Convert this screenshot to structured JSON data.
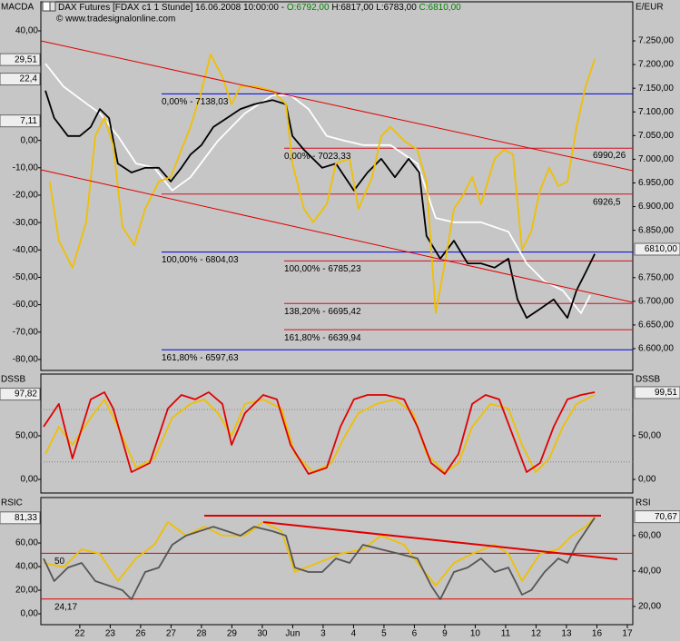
{
  "header": {
    "title": "DAX Futures [FDAX c1  1 Stunde] 16.06.2008 10:00:00 -",
    "open": "O:6792,00",
    "high": "H:6817,00",
    "low": "L:6783,00",
    "close": "C:6810,00",
    "copyright": "© www.tradesignalonline.com"
  },
  "chart_data": [
    {
      "type": "line",
      "left_title": "MACDA",
      "right_title": "E/EUR",
      "xlim": [
        -1.28,
        18.18
      ],
      "ylim": [
        -84.0,
        50.6
      ],
      "y2lim": [
        6554.0,
        7332.5
      ],
      "yticks": [
        {
          "value": 40,
          "label": "40,00"
        },
        {
          "value": 0,
          "label": "0,00"
        },
        {
          "value": -10,
          "label": "-10,00"
        },
        {
          "value": -20,
          "label": "-20,00"
        },
        {
          "value": -30,
          "label": "-30,00"
        },
        {
          "value": -40,
          "label": "-40,00"
        },
        {
          "value": -50,
          "label": "-50,00"
        },
        {
          "value": -60,
          "label": "-60,00"
        },
        {
          "value": -70,
          "label": "-70,00"
        },
        {
          "value": -80,
          "label": "-80,00"
        }
      ],
      "y2ticks": [
        {
          "value": 7250,
          "label": "7.250,00"
        },
        {
          "value": 7200,
          "label": "7.200,00"
        },
        {
          "value": 7150,
          "label": "7.150,00"
        },
        {
          "value": 7100,
          "label": "7.100,00"
        },
        {
          "value": 7050,
          "label": "7.050,00"
        },
        {
          "value": 7000,
          "label": "7.000,00"
        },
        {
          "value": 6950,
          "label": "6.950,00"
        },
        {
          "value": 6900,
          "label": "6.900,00"
        },
        {
          "value": 6850,
          "label": "6.850,00"
        },
        {
          "value": 6750,
          "label": "6.750,00"
        },
        {
          "value": 6700,
          "label": "6.700,00"
        },
        {
          "value": 6650,
          "label": "6.650,00"
        },
        {
          "value": 6600,
          "label": "6.600,00"
        }
      ],
      "series": [
        {
          "color": "#ffffff",
          "axis": "y2",
          "x": [
            -1.13,
            -0.54,
            0.06,
            0.66,
            1.25,
            1.85,
            2.45,
            3.04,
            3.64,
            4.54,
            5.43,
            6.33,
            6.93,
            7.52,
            8.12,
            8.72,
            9.31,
            10.21,
            11.1,
            11.7,
            12.3,
            13.19,
            14.09,
            14.69,
            15.28,
            15.88,
            16.48,
            16.78
          ],
          "values": [
            7202,
            7154,
            7125,
            7097,
            7049,
            6991,
            6982,
            6934,
            6962,
            7039,
            7097,
            7135,
            7135,
            7106,
            7049,
            7039,
            7030,
            7030,
            6991,
            6876,
            6867,
            6867,
            6847,
            6780,
            6742,
            6723,
            6675,
            6713
          ]
        },
        {
          "color": "#000000",
          "axis": "y2",
          "x": [
            -1.13,
            -0.84,
            -0.39,
            0,
            0.36,
            0.66,
            0.96,
            1.25,
            1.7,
            2.15,
            2.6,
            2.99,
            3.34,
            3.64,
            4.0,
            4.39,
            4.84,
            5.28,
            5.73,
            6.33,
            6.78,
            6.99,
            7.37,
            7.97,
            8.42,
            9.01,
            9.46,
            9.91,
            10.36,
            10.81,
            11.16,
            11.4,
            11.85,
            12.3,
            12.75,
            13.19,
            13.64,
            14.09,
            14.39,
            14.69,
            15.13,
            15.58,
            16.03,
            16.33,
            16.63,
            16.93
          ],
          "values": [
            7145,
            7087,
            7049,
            7049,
            7068,
            7106,
            7087,
            6991,
            6972,
            6982,
            6982,
            6953,
            6982,
            7010,
            7030,
            7068,
            7087,
            7106,
            7116,
            7125,
            7116,
            7049,
            7020,
            6982,
            6991,
            6934,
            6972,
            7001,
            6962,
            7001,
            6972,
            6838,
            6790,
            6828,
            6780,
            6780,
            6771,
            6790,
            6704,
            6665,
            6684,
            6704,
            6665,
            6723,
            6761,
            6800
          ]
        },
        {
          "color": "#f0c000",
          "axis": "y",
          "x": [
            -0.99,
            -0.69,
            -0.24,
            0.21,
            0.51,
            0.81,
            1.1,
            1.4,
            1.79,
            2.15,
            2.6,
            2.99,
            3.34,
            3.64,
            4.0,
            4.3,
            4.69,
            4.99,
            5.28,
            5.73,
            6.33,
            6.78,
            6.99,
            7.37,
            7.67,
            8.12,
            8.42,
            8.87,
            9.16,
            9.61,
            9.91,
            10.21,
            10.66,
            11.1,
            11.4,
            11.7,
            12.0,
            12.3,
            12.6,
            12.9,
            13.19,
            13.64,
            13.94,
            14.24,
            14.54,
            14.84,
            15.13,
            15.43,
            15.73,
            16.03,
            16.33,
            16.63,
            16.93
          ],
          "values": [
            -15.0,
            -36.6,
            -46.5,
            -29.9,
            1.6,
            8.3,
            -1.8,
            -31.6,
            -38.2,
            -25.0,
            -15.0,
            -13.4,
            -3.4,
            4.9,
            18.1,
            31.4,
            23.1,
            13.2,
            19.8,
            19.8,
            18.1,
            13.2,
            -8.4,
            -25.0,
            -29.9,
            -23.3,
            -8.4,
            -6.7,
            -25.0,
            -13.4,
            1.6,
            4.9,
            -0.1,
            -3.4,
            -15.0,
            -63.1,
            -44.9,
            -25.0,
            -20.0,
            -13.4,
            -23.3,
            -6.7,
            -3.4,
            -5.1,
            -39.9,
            -33.3,
            -18.3,
            -10.0,
            -16.7,
            -15.0,
            4.9,
            19.8,
            29.7
          ]
        }
      ],
      "levels": [
        {
          "value": 7138.03,
          "label": "0,00% - 7138,03",
          "color": "#0000e0",
          "axis": "y2"
        },
        {
          "value": 6804.03,
          "label": "100,00% - 6804,03",
          "color": "#0000e0",
          "axis": "y2"
        },
        {
          "value": 6597.63,
          "label": "161,80% - 6597,63",
          "color": "#0000e0",
          "axis": "y2"
        },
        {
          "value": 7023.33,
          "label": "0,00% - 7023,33",
          "color": "#d01020",
          "axis": "y2"
        },
        {
          "value": 6785.23,
          "label": "100,00% - 6785,23",
          "color": "#d01020",
          "axis": "y2"
        },
        {
          "value": 6695.42,
          "label": "138,20% - 6695,42",
          "color": "#d01020",
          "axis": "y2"
        },
        {
          "value": 6639.94,
          "label": "161,80% - 6639,94",
          "color": "#d01020",
          "axis": "y2"
        },
        {
          "value": 6926.5,
          "label": "6926,5",
          "color": "#d01020",
          "axis": "y2"
        }
      ],
      "annotations": [
        {
          "value": 6990.26,
          "label": "6990,26",
          "color": "#d01020",
          "axis": "y2"
        }
      ],
      "markers": [
        {
          "value": 29.51,
          "label": "29,51",
          "axis": "y",
          "side": "left"
        },
        {
          "value": 22.4,
          "label": "22,4",
          "axis": "y",
          "side": "left"
        },
        {
          "value": 7.11,
          "label": "7,11",
          "axis": "y",
          "side": "left"
        },
        {
          "value": 6810,
          "label": "6810,00",
          "axis": "y2",
          "side": "right"
        }
      ]
    },
    {
      "type": "line",
      "left_title": "DSSB",
      "right_title": "DSSB",
      "xlim": [
        -1.28,
        18.18
      ],
      "ylim": [
        -15.6,
        120.8
      ],
      "y2lim": [
        -15.6,
        120.8
      ],
      "yticks": [
        {
          "value": 50,
          "label": "50,00"
        },
        {
          "value": 0,
          "label": "0,00"
        }
      ],
      "y2ticks": [
        {
          "value": 50,
          "label": "50,00"
        },
        {
          "value": 0,
          "label": "0,00"
        }
      ],
      "series": [
        {
          "color": "#f0c000",
          "axis": "y",
          "x": [
            -1.13,
            -0.69,
            -0.24,
            0.36,
            0.81,
            1.25,
            1.85,
            2.45,
            3.04,
            3.64,
            4.09,
            4.54,
            4.99,
            5.43,
            6.03,
            6.63,
            7.07,
            7.67,
            8.27,
            8.72,
            9.16,
            9.76,
            10.36,
            10.96,
            11.4,
            12.0,
            12.45,
            12.9,
            13.49,
            14.09,
            14.54,
            14.99,
            15.43,
            15.88,
            16.33,
            16.93
          ],
          "values": [
            29.2,
            60.4,
            39.6,
            70.8,
            91.7,
            60.4,
            13.5,
            24.0,
            70.8,
            86.5,
            91.7,
            76.0,
            50.0,
            86.5,
            91.7,
            81.3,
            29.2,
            8.3,
            18.8,
            50.0,
            76.0,
            86.5,
            91.7,
            76.0,
            29.2,
            8.3,
            18.8,
            60.4,
            86.5,
            81.3,
            39.6,
            8.3,
            24.0,
            60.4,
            86.5,
            96.9
          ]
        },
        {
          "color": "#e00000",
          "axis": "y",
          "x": [
            -1.19,
            -0.69,
            -0.24,
            0.36,
            0.81,
            1.1,
            1.7,
            2.3,
            2.9,
            3.34,
            3.79,
            4.24,
            4.69,
            4.99,
            5.43,
            6.03,
            6.48,
            6.93,
            7.52,
            8.12,
            8.57,
            9.01,
            9.46,
            10.06,
            10.66,
            11.1,
            11.55,
            12.0,
            12.45,
            12.9,
            13.34,
            13.79,
            14.24,
            14.69,
            15.13,
            15.58,
            16.03,
            16.48,
            16.93
          ],
          "values": [
            60.4,
            86.5,
            24.0,
            91.7,
            100,
            81.3,
            8.3,
            18.8,
            81.3,
            96.9,
            91.7,
            100,
            86.5,
            39.6,
            76.0,
            96.9,
            91.7,
            39.6,
            6.3,
            13.5,
            60.4,
            91.7,
            96.9,
            96.9,
            91.7,
            60.4,
            18.8,
            6.3,
            29.2,
            86.5,
            96.9,
            91.7,
            50.0,
            8.3,
            18.8,
            60.4,
            91.7,
            96.9,
            100
          ]
        }
      ],
      "levels": [
        {
          "value": 80,
          "color": "#808080",
          "axis": "y"
        },
        {
          "value": 20,
          "color": "#808080",
          "axis": "y"
        }
      ],
      "markers": [
        {
          "value": 97.82,
          "label": "97,82",
          "axis": "y",
          "side": "left"
        },
        {
          "value": 99.51,
          "label": "99,51",
          "axis": "y2",
          "side": "right"
        }
      ]
    },
    {
      "type": "line",
      "left_title": "RSIC",
      "right_title": "RSI",
      "xlim": [
        -1.28,
        18.18
      ],
      "ylim": [
        -9.2,
        98.5
      ],
      "y2lim": [
        9.7,
        81.5
      ],
      "yticks": [
        {
          "value": 60,
          "label": "60,00"
        },
        {
          "value": 40,
          "label": "40,00"
        },
        {
          "value": 20,
          "label": "20,00"
        },
        {
          "value": 0,
          "label": "0,00"
        }
      ],
      "y2ticks": [
        {
          "value": 60,
          "label": "60,00"
        },
        {
          "value": 40,
          "label": "40,00"
        },
        {
          "value": 20,
          "label": "20,00"
        }
      ],
      "xticks": [
        {
          "value": 0,
          "label": "22"
        },
        {
          "value": 1,
          "label": "23"
        },
        {
          "value": 2,
          "label": "26"
        },
        {
          "value": 3,
          "label": "27"
        },
        {
          "value": 4,
          "label": "28"
        },
        {
          "value": 5,
          "label": "29"
        },
        {
          "value": 6,
          "label": "30"
        },
        {
          "value": 7,
          "label": "Jun"
        },
        {
          "value": 8,
          "label": "3"
        },
        {
          "value": 9,
          "label": "4"
        },
        {
          "value": 10,
          "label": "5"
        },
        {
          "value": 11,
          "label": "6"
        },
        {
          "value": 12,
          "label": "9"
        },
        {
          "value": 13,
          "label": "10"
        },
        {
          "value": 14,
          "label": "11"
        },
        {
          "value": 15,
          "label": "12"
        },
        {
          "value": 16,
          "label": "13"
        },
        {
          "value": 17,
          "label": "16"
        },
        {
          "value": 18,
          "label": "17"
        }
      ],
      "series": [
        {
          "color": "#f0c000",
          "axis": "y2",
          "x": [
            -1.19,
            -0.54,
            0.06,
            0.66,
            1.25,
            1.85,
            2.45,
            2.9,
            3.49,
            4.09,
            4.69,
            5.43,
            6.03,
            6.63,
            7.07,
            7.82,
            8.57,
            9.31,
            9.91,
            10.66,
            11.1,
            11.7,
            12.3,
            12.9,
            13.64,
            14.09,
            14.54,
            15.13,
            15.73,
            16.18,
            16.63,
            16.93
          ],
          "values": [
            44.6,
            42.1,
            52.3,
            49.7,
            34.4,
            47.2,
            54.9,
            67.7,
            60.0,
            65.1,
            60.0,
            60.0,
            67.7,
            62.6,
            39.5,
            44.6,
            49.7,
            52.3,
            60.0,
            54.9,
            44.6,
            31.8,
            44.6,
            49.7,
            54.9,
            49.7,
            34.4,
            49.7,
            52.3,
            60.0,
            65.1,
            70.3
          ]
        },
        {
          "color": "#555555",
          "axis": "y",
          "x": [
            -1.19,
            -0.84,
            -0.39,
            0.06,
            0.51,
            0.96,
            1.4,
            1.7,
            2.15,
            2.6,
            3.04,
            3.49,
            3.94,
            4.39,
            4.84,
            5.28,
            5.73,
            6.33,
            6.78,
            7.07,
            7.52,
            7.97,
            8.42,
            8.87,
            9.31,
            9.91,
            10.51,
            11.1,
            11.55,
            11.85,
            12.3,
            12.75,
            13.19,
            13.64,
            14.09,
            14.54,
            14.84,
            15.28,
            15.73,
            16.03,
            16.33,
            16.63,
            16.93
          ],
          "values": [
            46.9,
            27.7,
            39.2,
            43.1,
            27.7,
            23.8,
            20.0,
            12.3,
            35.4,
            39.2,
            58.5,
            66.2,
            70.0,
            73.8,
            70.0,
            66.2,
            73.8,
            70.0,
            66.2,
            39.2,
            35.4,
            35.4,
            46.9,
            43.1,
            58.5,
            54.6,
            50.8,
            46.9,
            23.8,
            12.3,
            35.4,
            39.2,
            46.9,
            35.4,
            39.2,
            16.2,
            20.0,
            35.4,
            46.9,
            43.1,
            58.5,
            70.0,
            81.5
          ]
        }
      ],
      "levels": [
        {
          "value": 50,
          "label": "50",
          "color": "#e00000",
          "axis": "y2"
        },
        {
          "value": 24.17,
          "label": "24,17",
          "color": "#e00000",
          "axis": "y2"
        }
      ],
      "markers": [
        {
          "value": 81.33,
          "label": "81,33",
          "axis": "y",
          "side": "left"
        },
        {
          "value": 70.67,
          "label": "70,67",
          "axis": "y2",
          "side": "right"
        }
      ]
    }
  ]
}
